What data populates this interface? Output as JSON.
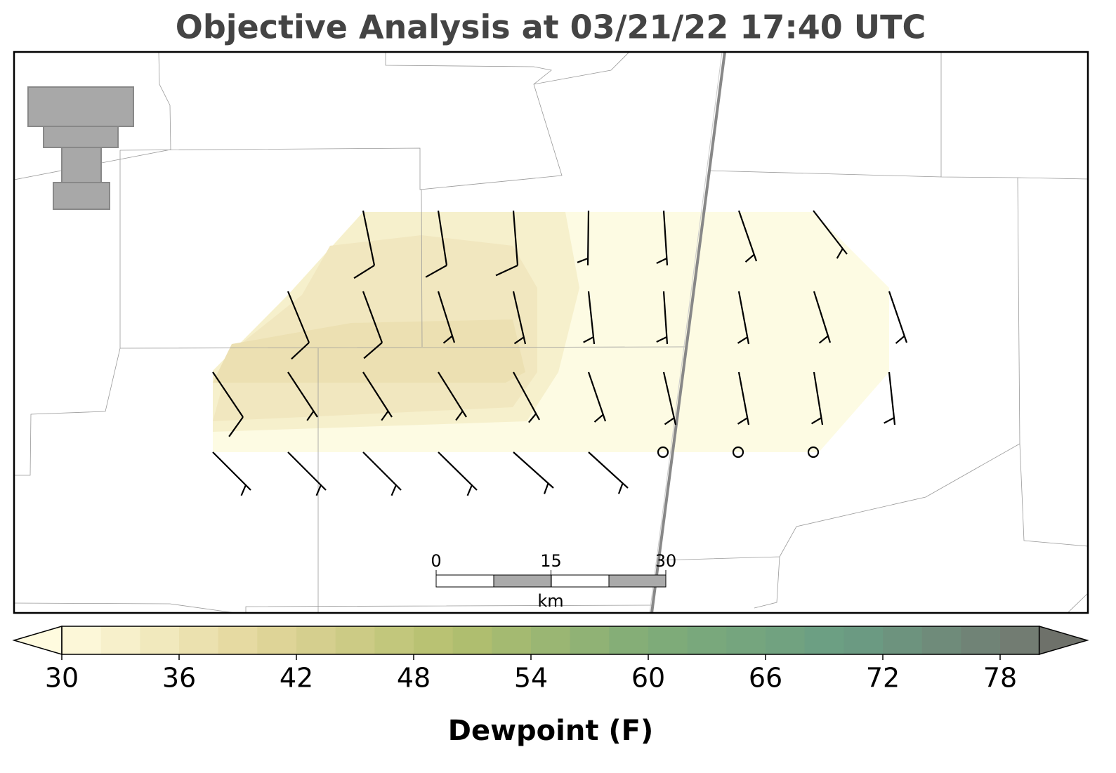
{
  "title": "Objective Analysis at 03/21/22 17:40 UTC",
  "scale_bar": {
    "ticks": [
      0,
      15,
      30
    ],
    "unit": "km"
  },
  "colorbar": {
    "label": "Dewpoint (F)",
    "lim": [
      30,
      80
    ],
    "step": 2,
    "ticks": [
      30,
      36,
      42,
      48,
      54,
      60,
      66,
      72,
      78
    ],
    "colors": [
      "#fffbdf",
      "#e3d69b",
      "#b4c06e",
      "#80ac78",
      "#6a9e84",
      "#737870"
    ],
    "extend_colors": [
      "#fffbdf",
      "#6e716a"
    ]
  }
}
